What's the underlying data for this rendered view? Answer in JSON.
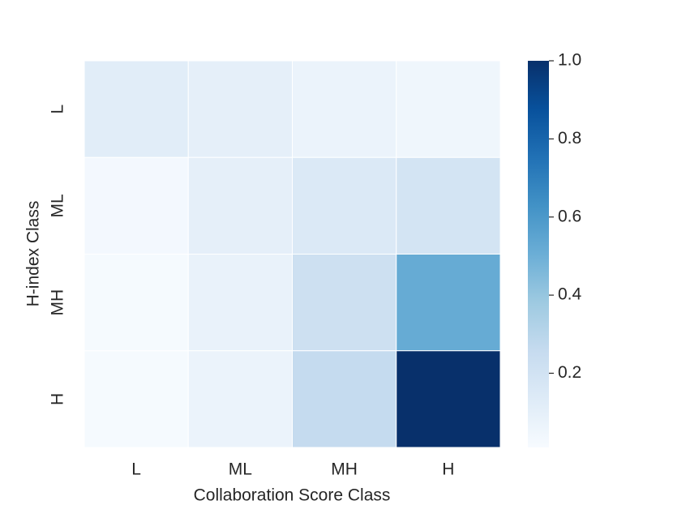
{
  "chart_data": {
    "type": "heatmap",
    "xlabel": "Collaboration Score Class",
    "ylabel": "H-index Class",
    "x_categories": [
      "L",
      "ML",
      "MH",
      "H"
    ],
    "y_categories": [
      "L",
      "ML",
      "MH",
      "H"
    ],
    "values": [
      [
        0.12,
        0.1,
        0.07,
        0.05
      ],
      [
        0.03,
        0.1,
        0.15,
        0.19
      ],
      [
        0.02,
        0.08,
        0.22,
        0.52
      ],
      [
        0.02,
        0.07,
        0.26,
        1.0
      ]
    ],
    "clim": [
      0.01,
      1.0
    ],
    "colorbar_ticks": [
      0.2,
      0.4,
      0.6,
      0.8,
      {
        "value": 1.0,
        "label": "1.0"
      }
    ],
    "colormap": [
      "#f7fbff",
      "#deebf7",
      "#c6dbef",
      "#9ecae1",
      "#6baed6",
      "#4292c6",
      "#2171b5",
      "#08519c",
      "#08306b"
    ]
  }
}
